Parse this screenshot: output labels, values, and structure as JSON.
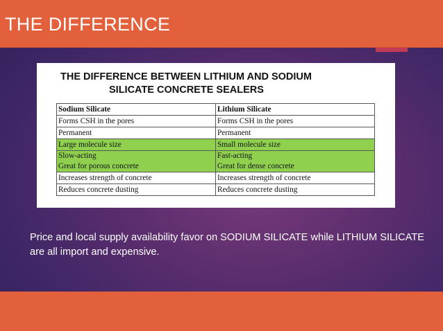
{
  "slide": {
    "title": "THE DIFFERENCE",
    "caption": "Price and local supply availability favor on SODIUM SILICATE while LITHIUM SILICATE are all import and expensive."
  },
  "image": {
    "heading_line1": "THE DIFFERENCE BETWEEN LITHIUM AND SODIUM",
    "heading_line2": "SILICATE CONCRETE SEALERS",
    "table": {
      "headers": [
        "Sodium  Silicate",
        "Lithium  Silicate"
      ],
      "rows": [
        {
          "highlight": false,
          "cells": [
            [
              "Forms  CSH in  the  pores"
            ],
            [
              "Forms  CSH in  the  pores"
            ]
          ]
        },
        {
          "highlight": false,
          "cells": [
            [
              "Permanent"
            ],
            [
              "Permanent"
            ]
          ]
        },
        {
          "highlight": true,
          "cells": [
            [
              "Large  molecule  size"
            ],
            [
              "Small  molecule  size"
            ]
          ]
        },
        {
          "highlight": true,
          "cells": [
            [
              "Slow-acting",
              "Great for porous  concrete"
            ],
            [
              "Fast-acting",
              "Great for dense  concrete"
            ]
          ]
        },
        {
          "highlight": false,
          "cells": [
            [
              "Increases  strength  of concrete"
            ],
            [
              "Increases  strength  of concrete"
            ]
          ]
        },
        {
          "highlight": false,
          "cells": [
            [
              "Reduces  concrete  dusting"
            ],
            [
              "Reduces  concrete  dusting"
            ]
          ]
        }
      ],
      "highlight_color": "#8fd14f"
    }
  },
  "colors": {
    "accent": "#e2603b",
    "accent_tab": "#c23a55",
    "background": "#4a2a6a"
  }
}
